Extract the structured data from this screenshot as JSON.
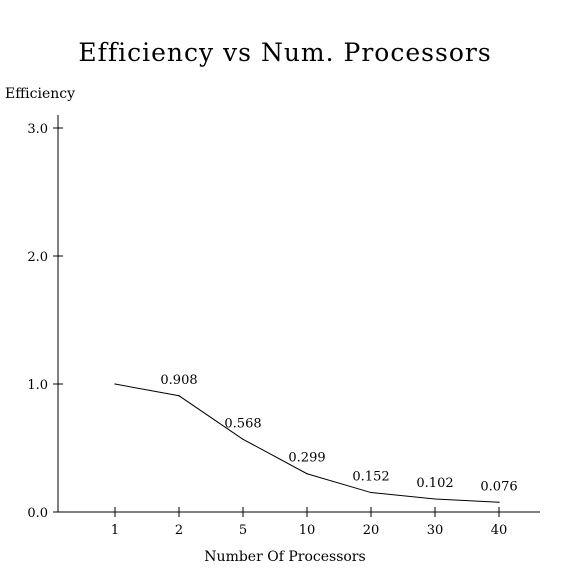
{
  "chart_data": {
    "type": "line",
    "title": "Efficiency vs Num. Processors",
    "ylabel": "Efficiency",
    "xlabel": "Number Of Processors",
    "categories": [
      "1",
      "2",
      "5",
      "10",
      "20",
      "30",
      "40"
    ],
    "values": [
      1.0,
      0.908,
      0.568,
      0.299,
      0.152,
      0.102,
      0.076
    ],
    "data_labels": [
      "",
      "0.908",
      "0.568",
      "0.299",
      "0.152",
      "0.102",
      "0.076"
    ],
    "ylim": [
      0,
      3.0
    ],
    "yticks": [
      0.0,
      1.0,
      2.0,
      3.0
    ],
    "ytick_labels": [
      "0.0",
      "1.0",
      "2.0",
      "3.0"
    ],
    "grid": false,
    "legend": "none",
    "line_color": "#000000"
  }
}
